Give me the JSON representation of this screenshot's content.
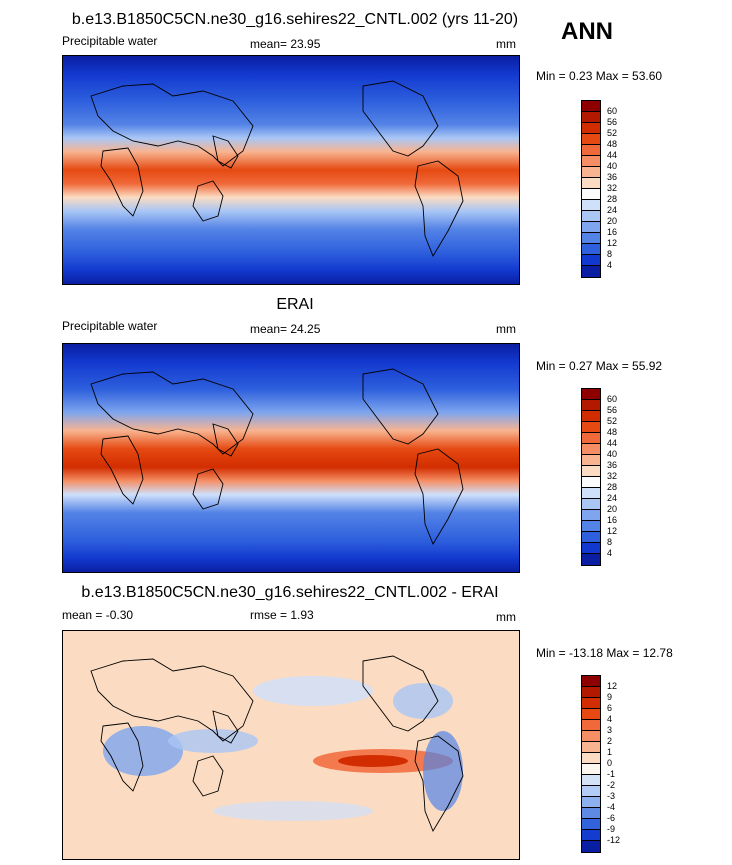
{
  "season": "ANN",
  "panels": [
    {
      "title": "b.e13.B1850C5CN.ne30_g16.sehires22_CNTL.002 (yrs 11-20)",
      "left_label": "Precipitable water",
      "mean_label": "mean=  23.95",
      "units": "mm",
      "minmax": "Min =   0.23 Max =  53.60",
      "levels": [
        "60",
        "56",
        "52",
        "48",
        "44",
        "40",
        "36",
        "32",
        "28",
        "24",
        "20",
        "16",
        "12",
        "8",
        "4"
      ],
      "colors": [
        "#8e0000",
        "#b31800",
        "#d22d00",
        "#e64a12",
        "#f0693a",
        "#f58e64",
        "#f8b490",
        "#fbdcc2",
        "#fbfbfb",
        "#cfe0fb",
        "#a9c6f5",
        "#7ea5ee",
        "#5483e6",
        "#2e60dd",
        "#1239cf",
        "#0a1ea1"
      ]
    },
    {
      "title": "ERAI",
      "left_label": "Precipitable water",
      "mean_label": "mean=  24.25",
      "units": "mm",
      "minmax": "Min =   0.27 Max =  55.92",
      "levels": [
        "60",
        "56",
        "52",
        "48",
        "44",
        "40",
        "36",
        "32",
        "28",
        "24",
        "20",
        "16",
        "12",
        "8",
        "4"
      ],
      "colors": [
        "#8e0000",
        "#b31800",
        "#d22d00",
        "#e64a12",
        "#f0693a",
        "#f58e64",
        "#f8b490",
        "#fbdcc2",
        "#fbfbfb",
        "#cfe0fb",
        "#a9c6f5",
        "#7ea5ee",
        "#5483e6",
        "#2e60dd",
        "#1239cf",
        "#0a1ea1"
      ]
    },
    {
      "title": "b.e13.B1850C5CN.ne30_g16.sehires22_CNTL.002 - ERAI",
      "left_label": "mean =  -0.30",
      "mean_label": "rmse =   1.93",
      "units": "mm",
      "minmax": "Min = -13.18 Max =  12.78",
      "levels": [
        "12",
        "9",
        "6",
        "4",
        "3",
        "2",
        "1",
        "0",
        "-1",
        "-2",
        "-3",
        "-4",
        "-6",
        "-9",
        "-12"
      ],
      "colors": [
        "#8e0000",
        "#b31800",
        "#d22d00",
        "#e64a12",
        "#f0693a",
        "#f58e64",
        "#f8b490",
        "#fbdcc2",
        "#fbf6f0",
        "#d4e2f8",
        "#b3ccf5",
        "#8db0ef",
        "#5e8ae6",
        "#3262dc",
        "#143ccf",
        "#0a1ea1"
      ]
    }
  ]
}
